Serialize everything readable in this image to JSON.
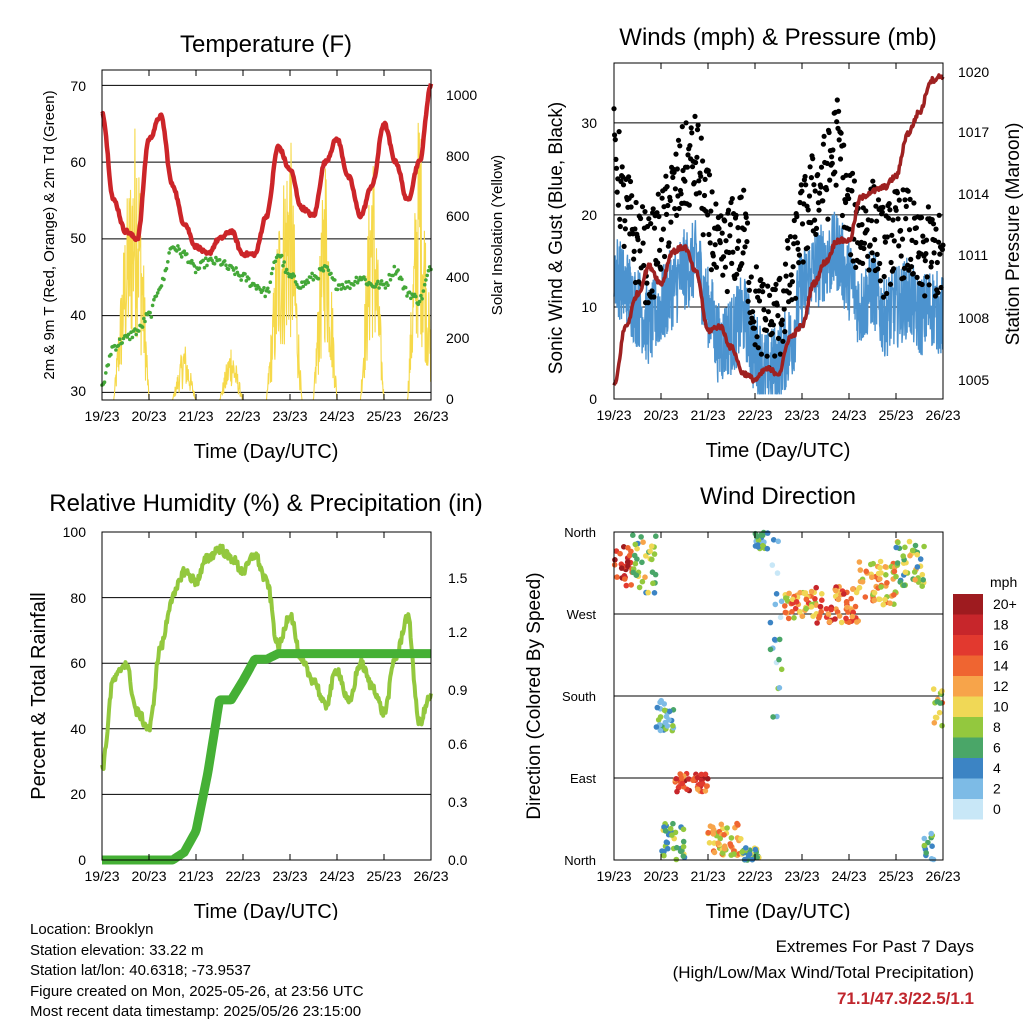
{
  "time_ticks": [
    "19/23",
    "20/23",
    "21/23",
    "22/23",
    "23/23",
    "24/23",
    "25/23",
    "26/23"
  ],
  "time_axis_label": "Time (Day/UTC)",
  "colors": {
    "temp": "#cc2529",
    "dew": "#44a838",
    "solar": "#f6d94a",
    "wind": "#4c93cf",
    "gust": "#000000",
    "pressure": "#9e2121",
    "rh": "#93c83e",
    "precip": "#45b035"
  },
  "chart_data": [
    {
      "type": "line",
      "title": "Temperature (F)",
      "xlabel": "Time (Day/UTC)",
      "ylabel": "2m & 9m T (Red, Orange) & 2m Td (Green)",
      "ylabel_right": "Solar Insolation (Yellow)",
      "ylim": [
        29,
        72
      ],
      "ylim_right": [
        0,
        1050
      ],
      "yticks": [
        "30",
        "40",
        "50",
        "60",
        "70"
      ],
      "yticks_right": [
        "0",
        "200",
        "400",
        "600",
        "800",
        "1000"
      ],
      "x_days": [
        0,
        0.25,
        0.5,
        0.75,
        1,
        1.25,
        1.5,
        1.75,
        2,
        2.25,
        2.5,
        2.75,
        3,
        3.25,
        3.5,
        3.75,
        4,
        4.25,
        4.5,
        4.75,
        5,
        5.25,
        5.5,
        5.75,
        6,
        6.25,
        6.5,
        6.75,
        7
      ],
      "series": [
        {
          "name": "2m T",
          "values": [
            66.5,
            55,
            51,
            50,
            63,
            66,
            57,
            52,
            49,
            48,
            50,
            51,
            48,
            48,
            53,
            62,
            59,
            54,
            53,
            60,
            63,
            58,
            53,
            57,
            65,
            60,
            55,
            60,
            70
          ]
        },
        {
          "name": "2m Td",
          "values": [
            31,
            36,
            37,
            38,
            40,
            44,
            49,
            48,
            46,
            47,
            47,
            46,
            45,
            44,
            43,
            48,
            45,
            44,
            45,
            46,
            44,
            44,
            45,
            44,
            44,
            46,
            43,
            42,
            46
          ]
        },
        {
          "name": "Solar Insolation",
          "values": [
            0,
            0,
            600,
            980,
            0,
            0,
            0,
            200,
            0,
            0,
            0,
            200,
            0,
            0,
            0,
            600,
            900,
            0,
            0,
            850,
            0,
            0,
            0,
            900,
            0,
            0,
            0,
            1000,
            200
          ]
        }
      ]
    },
    {
      "type": "line",
      "title": "Winds (mph) & Pressure (mb)",
      "xlabel": "Time (Day/UTC)",
      "ylabel": "Sonic Wind & Gust (Blue, Black)",
      "ylabel_right": "Station Pressure (Maroon)",
      "ylim": [
        0,
        36.5
      ],
      "ylim_right": [
        1004.6,
        1020.3
      ],
      "yticks": [
        "0",
        "10",
        "20",
        "30"
      ],
      "yticks_right": [
        "1005",
        "1008",
        "1011",
        "1014",
        "1017",
        "1020"
      ],
      "x_days": [
        0,
        0.25,
        0.5,
        0.75,
        1,
        1.25,
        1.5,
        1.75,
        2,
        2.25,
        2.5,
        2.75,
        3,
        3.25,
        3.5,
        3.75,
        4,
        4.25,
        4.5,
        4.75,
        5,
        5.25,
        5.5,
        5.75,
        6,
        6.25,
        6.5,
        6.75,
        7
      ],
      "series": [
        {
          "name": "Sonic Wind",
          "values": [
            14,
            12,
            10,
            8,
            10,
            12,
            14,
            15,
            10,
            6,
            7,
            9,
            5,
            3,
            4,
            6,
            12,
            14,
            15,
            16,
            13,
            10,
            12,
            9,
            10,
            11,
            9,
            10,
            9
          ]
        },
        {
          "name": "Gust",
          "values": [
            27,
            20,
            17,
            15,
            18,
            22,
            25,
            26,
            20,
            15,
            17,
            18,
            10,
            8,
            9,
            13,
            19,
            22,
            24,
            28,
            20,
            18,
            19,
            16,
            18,
            18,
            15,
            16,
            15
          ]
        },
        {
          "name": "Station Pressure",
          "values": [
            1005.2,
            1008,
            1009.5,
            1010.8,
            1010,
            1011.5,
            1011.7,
            1010.5,
            1007.8,
            1008,
            1007,
            1005.8,
            1005.5,
            1006,
            1005.8,
            1007.5,
            1008,
            1010,
            1011,
            1012,
            1012,
            1014,
            1014.3,
            1014.5,
            1015,
            1017,
            1018,
            1019.5,
            1019.7
          ]
        }
      ]
    },
    {
      "type": "line",
      "title": "Relative Humidity (%) & Precipitation (in)",
      "xlabel": "Time (Day/UTC)",
      "ylabel": "Percent & Total Rainfall",
      "ylim": [
        0,
        100
      ],
      "ylim_right": [
        0,
        1.7
      ],
      "yticks": [
        "0",
        "20",
        "40",
        "60",
        "80",
        "100"
      ],
      "yticks_right": [
        "0.0",
        "0.3",
        "0.6",
        "0.9",
        "1.2",
        "1.5"
      ],
      "x_days": [
        0,
        0.25,
        0.5,
        0.75,
        1,
        1.25,
        1.5,
        1.75,
        2,
        2.25,
        2.5,
        2.75,
        3,
        3.25,
        3.5,
        3.75,
        4,
        4.25,
        4.5,
        4.75,
        5,
        5.25,
        5.5,
        5.75,
        6,
        6.25,
        6.5,
        6.75,
        7
      ],
      "series": [
        {
          "name": "Relative Humidity",
          "values": [
            28,
            55,
            60,
            45,
            40,
            65,
            80,
            88,
            85,
            92,
            95,
            92,
            88,
            93,
            85,
            65,
            75,
            60,
            55,
            47,
            58,
            48,
            60,
            53,
            45,
            62,
            74,
            42,
            50
          ]
        },
        {
          "name": "Total Precipitation",
          "values": [
            0,
            0,
            0,
            0,
            0,
            0,
            0,
            0.04,
            0.15,
            0.45,
            0.83,
            0.83,
            0.93,
            1.04,
            1.04,
            1.07,
            1.07,
            1.07,
            1.07,
            1.07,
            1.07,
            1.07,
            1.07,
            1.07,
            1.07,
            1.07,
            1.07,
            1.07,
            1.07
          ]
        }
      ]
    },
    {
      "type": "scatter",
      "title": "Wind Direction",
      "xlabel": "Time (Day/UTC)",
      "ylabel": "Direction (Colored By Speed)",
      "yticks": [
        "North",
        "West",
        "South",
        "East",
        "North"
      ],
      "colorbar_title": "mph",
      "colorbar_labels": [
        "20+",
        "18",
        "16",
        "14",
        "12",
        "10",
        "8",
        "6",
        "4",
        "2",
        "0"
      ],
      "colorbar_colors": [
        "#9e1b1f",
        "#c7262b",
        "#e2392f",
        "#ef6531",
        "#f7a44a",
        "#f0d856",
        "#93c83e",
        "#4aa668",
        "#3c84c4",
        "#7dbbe6",
        "#c8e7f7"
      ],
      "clusters": [
        {
          "x": [
            0.0,
            0.4
          ],
          "dir": [
            300,
            345
          ],
          "speed": 17
        },
        {
          "x": [
            0.4,
            0.9
          ],
          "dir": [
            290,
            360
          ],
          "speed": 8
        },
        {
          "x": [
            0.9,
            1.3
          ],
          "dir": [
            140,
            175
          ],
          "speed": 5
        },
        {
          "x": [
            1.3,
            2.0
          ],
          "dir": [
            75,
            95
          ],
          "speed": 16
        },
        {
          "x": [
            1.0,
            1.5
          ],
          "dir": [
            0,
            40
          ],
          "speed": 7
        },
        {
          "x": [
            2.0,
            2.7
          ],
          "dir": [
            5,
            40
          ],
          "speed": 11
        },
        {
          "x": [
            2.7,
            3.1
          ],
          "dir": [
            0,
            15
          ],
          "speed": 7
        },
        {
          "x": [
            3.0,
            3.3
          ],
          "dir": [
            340,
            360
          ],
          "speed": 5
        },
        {
          "x": [
            3.3,
            3.6
          ],
          "dir": [
            150,
            360
          ],
          "speed": 4
        },
        {
          "x": [
            3.6,
            4.3
          ],
          "dir": [
            265,
            295
          ],
          "speed": 12
        },
        {
          "x": [
            4.3,
            5.2
          ],
          "dir": [
            260,
            300
          ],
          "speed": 14
        },
        {
          "x": [
            5.2,
            6.0
          ],
          "dir": [
            280,
            330
          ],
          "speed": 11
        },
        {
          "x": [
            6.0,
            6.6
          ],
          "dir": [
            300,
            350
          ],
          "speed": 8
        },
        {
          "x": [
            6.6,
            6.8
          ],
          "dir": [
            0,
            30
          ],
          "speed": 4
        },
        {
          "x": [
            6.8,
            7.0
          ],
          "dir": [
            145,
            190
          ],
          "speed": 10
        }
      ]
    }
  ],
  "info": {
    "location": "Location: Brooklyn",
    "elevation": "Station elevation: 33.22 m",
    "latlon": "Station lat/lon: 40.6318; -73.9537",
    "created": "Figure created on Mon, 2025-05-26, at 23:56 UTC",
    "latest": "Most recent data timestamp: 2025/05/26 23:15:00"
  },
  "extremes": {
    "title": "Extremes For Past 7 Days",
    "subtitle": "(High/Low/Max Wind/Total Precipitation)",
    "values": "71.1/47.3/22.5/1.1"
  }
}
